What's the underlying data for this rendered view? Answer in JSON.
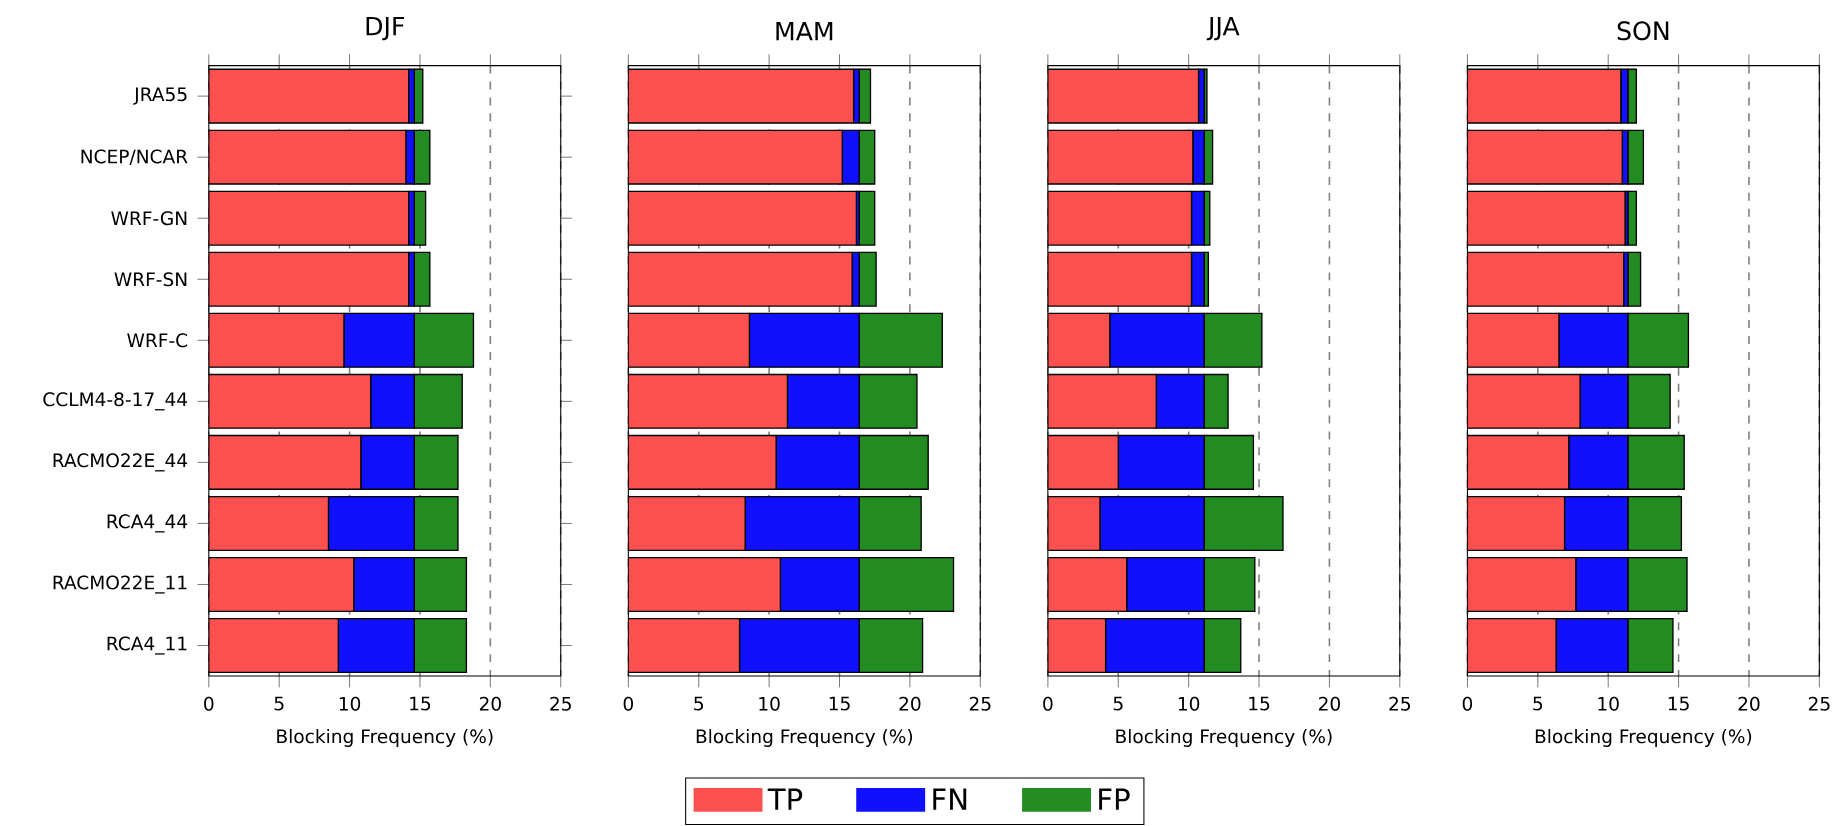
{
  "chart_data": [
    {
      "type": "bar",
      "orientation": "horizontal",
      "stacked": true,
      "title": "DJF",
      "xlabel": "Blocking Frequency (%)",
      "categories": [
        "JRA55",
        "NCEP/NCAR",
        "WRF-GN",
        "WRF-SN",
        "WRF-C",
        "CCLM4-8-17_44",
        "RACMO22E_44",
        "RCA4_44",
        "RACMO22E_11",
        "RCA4_11"
      ],
      "xlim": [
        0,
        25
      ],
      "xticks": [
        0,
        5,
        10,
        15,
        20,
        25
      ],
      "grid": "x",
      "legend": "bottom",
      "series": [
        {
          "name": "TP",
          "color": "#ff5050",
          "values": [
            14.2,
            14.0,
            14.2,
            14.2,
            9.6,
            11.5,
            10.8,
            8.5,
            10.3,
            9.2
          ]
        },
        {
          "name": "FN",
          "color": "#1010ff",
          "values": [
            0.4,
            0.6,
            0.4,
            0.4,
            5.0,
            3.1,
            3.8,
            6.1,
            4.3,
            5.4
          ]
        },
        {
          "name": "FP",
          "color": "#228b22",
          "values": [
            0.6,
            1.1,
            0.8,
            1.1,
            4.2,
            3.4,
            3.1,
            3.1,
            3.7,
            3.7
          ]
        }
      ]
    },
    {
      "type": "bar",
      "orientation": "horizontal",
      "stacked": true,
      "title": "MAM",
      "xlabel": "Blocking Frequency (%)",
      "categories": [
        "JRA55",
        "NCEP/NCAR",
        "WRF-GN",
        "WRF-SN",
        "WRF-C",
        "CCLM4-8-17_44",
        "RACMO22E_44",
        "RCA4_44",
        "RACMO22E_11",
        "RCA4_11"
      ],
      "xlim": [
        0,
        25
      ],
      "xticks": [
        0,
        5,
        10,
        15,
        20,
        25
      ],
      "grid": "x",
      "tick_labels": "x",
      "series": [
        {
          "name": "TP",
          "color": "#ff5050",
          "values": [
            16.0,
            15.2,
            16.2,
            15.9,
            8.6,
            11.3,
            10.5,
            8.3,
            10.8,
            7.9
          ]
        },
        {
          "name": "FN",
          "color": "#1010ff",
          "values": [
            0.4,
            1.2,
            0.2,
            0.5,
            7.8,
            5.1,
            5.9,
            8.1,
            5.6,
            8.5
          ]
        },
        {
          "name": "FP",
          "color": "#228b22",
          "values": [
            0.8,
            1.1,
            1.1,
            1.2,
            5.9,
            4.1,
            4.9,
            4.4,
            6.7,
            4.5
          ]
        }
      ]
    },
    {
      "type": "bar",
      "orientation": "horizontal",
      "stacked": true,
      "title": "JJA",
      "xlabel": "Blocking Frequency (%)",
      "categories": [
        "JRA55",
        "NCEP/NCAR",
        "WRF-GN",
        "WRF-SN",
        "WRF-C",
        "CCLM4-8-17_44",
        "RACMO22E_44",
        "RCA4_44",
        "RACMO22E_11",
        "RCA4_11"
      ],
      "xlim": [
        0,
        25
      ],
      "xticks": [
        0,
        5,
        10,
        15,
        20,
        25
      ],
      "grid": "x",
      "tick_labels": "x",
      "series": [
        {
          "name": "TP",
          "color": "#ff5050",
          "values": [
            10.7,
            10.3,
            10.2,
            10.2,
            4.4,
            7.7,
            5.0,
            3.7,
            5.6,
            4.1
          ]
        },
        {
          "name": "FN",
          "color": "#1010ff",
          "values": [
            0.4,
            0.8,
            0.9,
            0.9,
            6.7,
            3.4,
            6.1,
            7.4,
            5.5,
            7.0
          ]
        },
        {
          "name": "FP",
          "color": "#228b22",
          "values": [
            0.2,
            0.6,
            0.4,
            0.3,
            4.1,
            1.7,
            3.5,
            5.6,
            3.6,
            2.6
          ]
        }
      ]
    },
    {
      "type": "bar",
      "orientation": "horizontal",
      "stacked": true,
      "title": "SON",
      "xlabel": "Blocking Frequency (%)",
      "categories": [
        "JRA55",
        "NCEP/NCAR",
        "WRF-GN",
        "WRF-SN",
        "WRF-C",
        "CCLM4-8-17_44",
        "RACMO22E_44",
        "RCA4_44",
        "RACMO22E_11",
        "RCA4_11"
      ],
      "xlim": [
        0,
        25
      ],
      "xticks": [
        0,
        5,
        10,
        15,
        20,
        25
      ],
      "grid": "x",
      "tick_labels": "x",
      "series": [
        {
          "name": "TP",
          "color": "#ff5050",
          "values": [
            10.9,
            11.0,
            11.2,
            11.1,
            6.5,
            8.0,
            7.2,
            6.9,
            7.7,
            6.3
          ]
        },
        {
          "name": "FN",
          "color": "#1010ff",
          "values": [
            0.5,
            0.4,
            0.2,
            0.3,
            4.9,
            3.4,
            4.2,
            4.5,
            3.7,
            5.1
          ]
        },
        {
          "name": "FP",
          "color": "#228b22",
          "values": [
            0.6,
            1.1,
            0.6,
            0.9,
            4.3,
            3.0,
            4.0,
            3.8,
            4.2,
            3.2
          ]
        }
      ]
    }
  ]
}
